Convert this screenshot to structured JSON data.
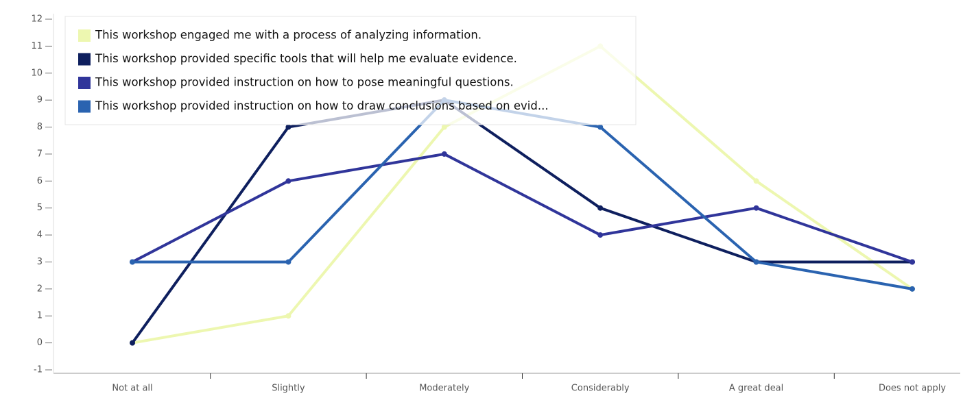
{
  "chart_data": {
    "type": "line",
    "categories": [
      "Not at all",
      "Slightly",
      "Moderately",
      "Considerably",
      "A great deal",
      "Does not apply"
    ],
    "series": [
      {
        "name": "This workshop engaged me with a process of analyzing information.",
        "color": "#edf7b0",
        "values": [
          0,
          1,
          8,
          11,
          6,
          2
        ]
      },
      {
        "name": "This workshop provided specific tools that will help me evaluate evidence.",
        "color": "#0e1f5e",
        "values": [
          0,
          8,
          9,
          5,
          3,
          3
        ]
      },
      {
        "name": "This workshop provided instruction on how to pose meaningful questions.",
        "color": "#30359a",
        "values": [
          3,
          6,
          7,
          4,
          5,
          3
        ]
      },
      {
        "name": "This workshop provided instruction on how to draw conclusions based on evid...",
        "color": "#2a63b0",
        "values": [
          3,
          3,
          9,
          8,
          3,
          2
        ]
      }
    ],
    "ylim": [
      -1,
      12
    ],
    "yticks": [
      -1,
      0,
      1,
      2,
      3,
      4,
      5,
      6,
      7,
      8,
      9,
      10,
      11,
      12
    ],
    "legend": "upper left"
  }
}
